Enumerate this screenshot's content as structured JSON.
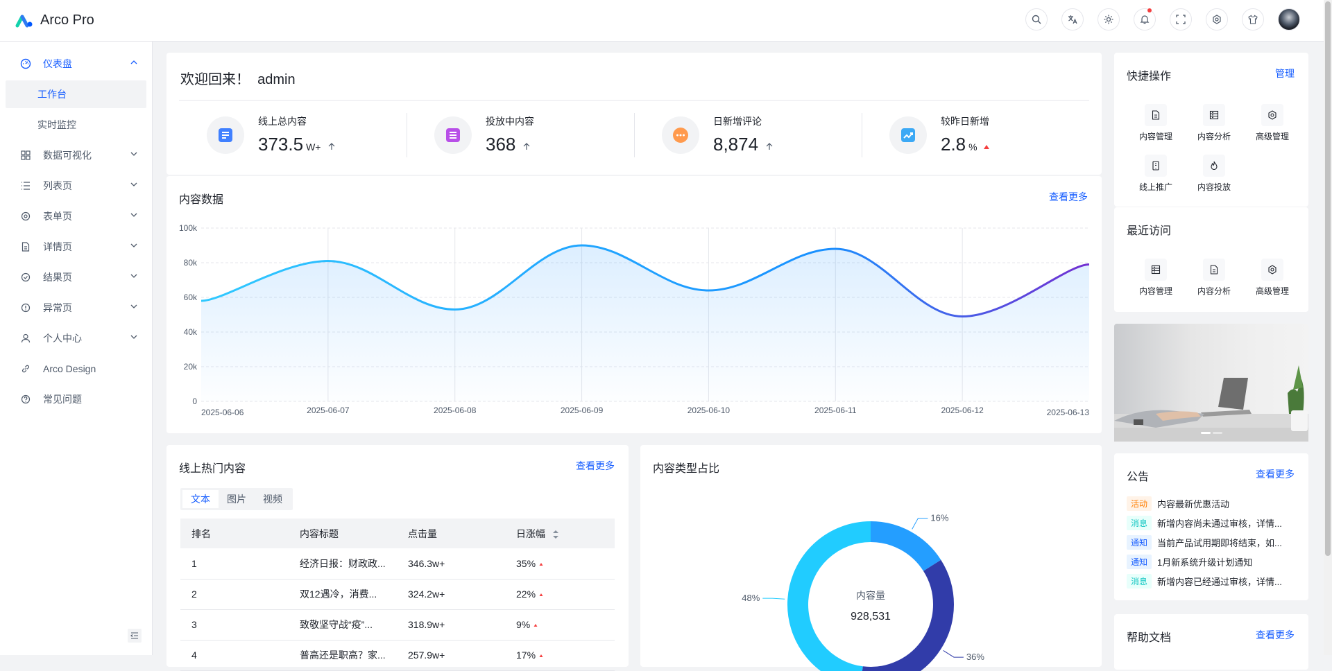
{
  "brand": {
    "name": "Arco Pro"
  },
  "header": {
    "icons": [
      "search-icon",
      "language-icon",
      "theme-icon",
      "bell-icon",
      "fullscreen-icon",
      "gear-icon",
      "shirt-icon"
    ]
  },
  "sidebar": {
    "dashboard": {
      "label": "仪表盘",
      "children": [
        "工作台",
        "实时监控"
      ]
    },
    "items": [
      "数据可视化",
      "列表页",
      "表单页",
      "详情页",
      "结果页",
      "异常页",
      "个人中心",
      "Arco Design",
      "常见问题"
    ]
  },
  "welcome": {
    "greeting": "欢迎回来！",
    "user": "admin"
  },
  "stats": [
    {
      "label": "线上总内容",
      "value": "373.5",
      "unit": "W+",
      "trend": "up",
      "color": "#4080ff"
    },
    {
      "label": "投放中内容",
      "value": "368",
      "unit": "",
      "trend": "up",
      "color": "#b84fe8"
    },
    {
      "label": "日新增评论",
      "value": "8,874",
      "unit": "",
      "trend": "up",
      "color": "#ff9a4d"
    },
    {
      "label": "较昨日新增",
      "value": "2.8",
      "unit": "%",
      "trend": "up-red",
      "color": "#3ca9f5"
    }
  ],
  "content_data": {
    "title": "内容数据",
    "more": "查看更多"
  },
  "chart_data": {
    "type": "area",
    "title": "内容数据",
    "categories": [
      "2025-06-06",
      "2025-06-07",
      "2025-06-08",
      "2025-06-09",
      "2025-06-10",
      "2025-06-11",
      "2025-06-12",
      "2025-06-13"
    ],
    "values": [
      58000,
      81000,
      53000,
      90000,
      64000,
      88000,
      49000,
      79000
    ],
    "ylim": [
      0,
      100000
    ],
    "yticks": [
      "0",
      "20k",
      "40k",
      "60k",
      "80k",
      "100k"
    ],
    "gradient": [
      "#30c9ff",
      "#722ed1"
    ]
  },
  "quick_ops": {
    "title": "快捷操作",
    "manage": "管理",
    "items": [
      "内容管理",
      "内容分析",
      "高级管理",
      "线上推广",
      "内容投放"
    ]
  },
  "recent": {
    "title": "最近访问",
    "items": [
      "内容管理",
      "内容分析",
      "高级管理"
    ]
  },
  "hot": {
    "title": "线上热门内容",
    "more": "查看更多",
    "tabs": [
      "文本",
      "图片",
      "视频"
    ],
    "columns": [
      "排名",
      "内容标题",
      "点击量",
      "日涨幅"
    ],
    "rows": [
      [
        "1",
        "经济日报：财政政...",
        "346.3w+",
        "35%"
      ],
      [
        "2",
        "双12遇冷，消费...",
        "324.2w+",
        "22%"
      ],
      [
        "3",
        "致敬坚守战“疫”...",
        "318.9w+",
        "9%"
      ],
      [
        "4",
        "普高还是职高？家...",
        "257.9w+",
        "17%"
      ]
    ]
  },
  "donut": {
    "title": "内容类型占比",
    "center_label": "内容量",
    "center_value": "928,531",
    "slices": [
      {
        "label": "16%",
        "value": 16,
        "color": "#249eff"
      },
      {
        "label": "36%",
        "value": 36,
        "color": "#313ca9"
      },
      {
        "label": "48%",
        "value": 48,
        "color": "#21ccff"
      }
    ]
  },
  "notice": {
    "title": "公告",
    "more": "查看更多",
    "items": [
      {
        "tag": "活动",
        "text": "内容最新优惠活动",
        "tagColor": "#ff7d00",
        "tagBg": "#fff3e8"
      },
      {
        "tag": "消息",
        "text": "新增内容尚未通过审核，详情...",
        "tagColor": "#0fc6c2",
        "tagBg": "#e8fffb"
      },
      {
        "tag": "通知",
        "text": "当前产品试用期即将结束，如...",
        "tagColor": "#165dff",
        "tagBg": "#e8f3ff"
      },
      {
        "tag": "通知",
        "text": "1月新系统升级计划通知",
        "tagColor": "#165dff",
        "tagBg": "#e8f3ff"
      },
      {
        "tag": "消息",
        "text": "新增内容已经通过审核，详情...",
        "tagColor": "#0fc6c2",
        "tagBg": "#e8fffb"
      }
    ]
  },
  "help": {
    "title": "帮助文档",
    "more": "查看更多"
  }
}
